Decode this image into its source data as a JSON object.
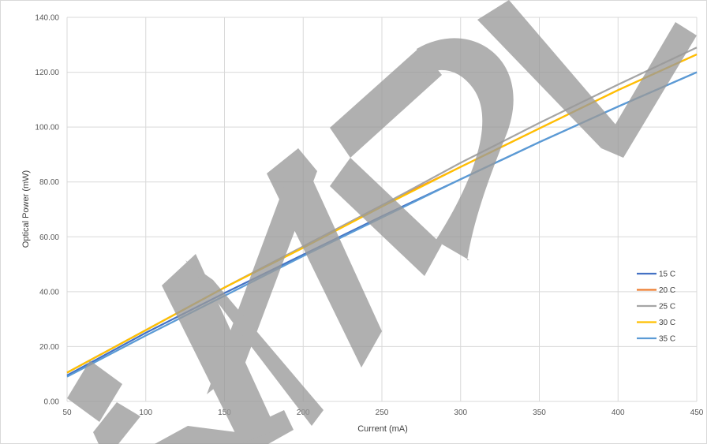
{
  "chart_data": {
    "type": "line",
    "title": "",
    "xlabel": "Current (mA)",
    "ylabel": "Optical Power (mW)",
    "xlim": [
      50,
      450
    ],
    "ylim": [
      0,
      140
    ],
    "x_ticks": [
      "50",
      "100",
      "150",
      "200",
      "250",
      "300",
      "350",
      "400",
      "450"
    ],
    "y_ticks": [
      "0.00",
      "20.00",
      "40.00",
      "60.00",
      "80.00",
      "100.00",
      "120.00",
      "140.00"
    ],
    "grid": true,
    "legend_position": "right",
    "x": [
      50,
      100,
      150,
      200,
      250,
      300,
      350,
      400,
      450
    ],
    "series": [
      {
        "name": "15 C",
        "color": "#4472C4",
        "values": [
          9.5,
          25.0,
          39.5,
          53.5,
          67.5,
          81.0,
          94.5,
          107.5,
          120.0
        ]
      },
      {
        "name": "20 C",
        "color": "#ED7D31",
        "values": [
          10.5,
          26.0,
          41.5,
          56.5,
          71.5,
          85.5,
          99.5,
          113.5,
          126.5
        ]
      },
      {
        "name": "25 C",
        "color": "#A5A5A5",
        "values": [
          10.5,
          26.0,
          41.5,
          56.5,
          71.5,
          87.0,
          101.5,
          115.5,
          129.0
        ]
      },
      {
        "name": "30 C",
        "color": "#FFC000",
        "values": [
          10.5,
          26.0,
          41.5,
          56.0,
          71.0,
          85.5,
          99.5,
          113.5,
          126.5
        ]
      },
      {
        "name": "35 C",
        "color": "#5B9BD5",
        "values": [
          9.0,
          24.0,
          38.5,
          53.0,
          67.0,
          81.0,
          94.5,
          107.5,
          120.0
        ]
      }
    ],
    "watermark": "SAMPLE"
  }
}
